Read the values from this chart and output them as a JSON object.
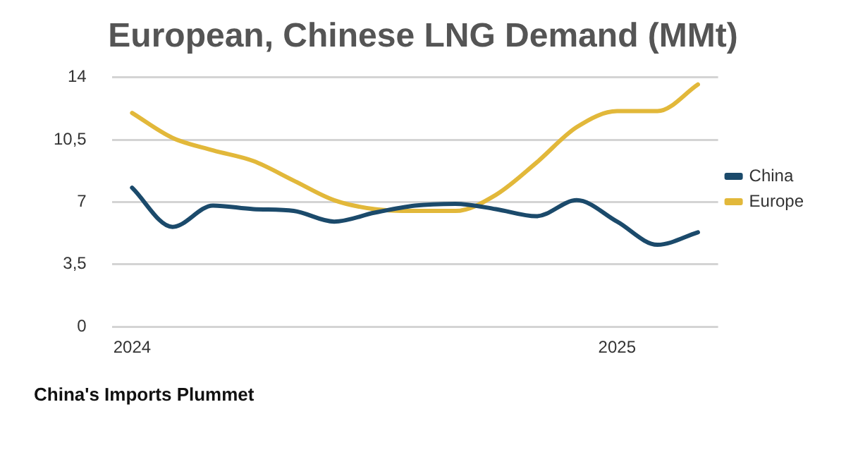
{
  "chart_data": {
    "type": "line",
    "title": "European, Chinese LNG Demand (MMt)",
    "categories": [
      "2024",
      null,
      null,
      null,
      null,
      null,
      null,
      null,
      null,
      null,
      null,
      null,
      "2025",
      null,
      null
    ],
    "series": [
      {
        "name": "China",
        "color": "#1b4a6b",
        "values": [
          7.8,
          5.6,
          6.8,
          6.6,
          6.5,
          5.9,
          6.4,
          6.8,
          6.9,
          6.6,
          6.2,
          7.1,
          5.9,
          4.6,
          5.3
        ]
      },
      {
        "name": "Europe",
        "color": "#e2b83a",
        "values": [
          12.0,
          10.6,
          9.9,
          9.3,
          8.2,
          7.1,
          6.6,
          6.5,
          6.5,
          7.4,
          9.2,
          11.2,
          12.1,
          12.1,
          13.6
        ]
      }
    ],
    "ylim": [
      0,
      14
    ],
    "yticks": [
      0,
      {
        "value": 3.5,
        "label": "3,5"
      },
      7,
      {
        "value": 10.5,
        "label": "10,5"
      },
      14
    ],
    "grid": "y",
    "legend": "right",
    "marker": "none",
    "line_style": "solid",
    "annotations": [
      "China's Imports Plummet"
    ]
  }
}
